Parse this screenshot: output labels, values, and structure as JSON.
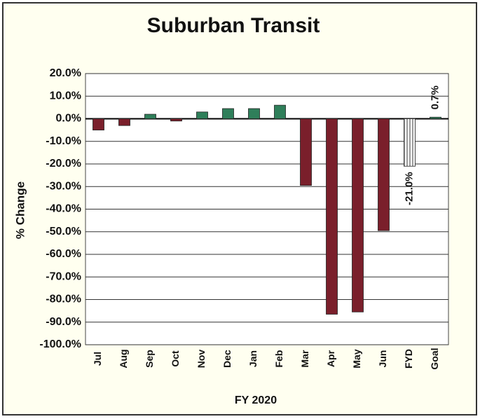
{
  "chart_data": {
    "type": "bar",
    "title": "Suburban Transit",
    "xlabel": "FY 2020",
    "ylabel": "% Change",
    "categories": [
      "Jul",
      "Aug",
      "Sep",
      "Oct",
      "Nov",
      "Dec",
      "Jan",
      "Feb",
      "Mar",
      "Apr",
      "May",
      "Jun",
      "FYD",
      "Goal"
    ],
    "values": [
      -5,
      -3,
      2,
      -1,
      3,
      4.5,
      4.5,
      6,
      -29.5,
      -86.5,
      -85.5,
      -49.5,
      -21.0,
      0.7
    ],
    "value_labels": [
      null,
      null,
      null,
      null,
      null,
      null,
      null,
      null,
      null,
      null,
      null,
      null,
      "-21.0%",
      "0.7%"
    ],
    "colors": [
      "#7a1f2b",
      "#7a1f2b",
      "#2f7f5a",
      "#7a1f2b",
      "#2f7f5a",
      "#2f7f5a",
      "#2f7f5a",
      "#2f7f5a",
      "#7a1f2b",
      "#7a1f2b",
      "#7a1f2b",
      "#7a1f2b",
      "#9a9a9a",
      "#2f7f5a"
    ],
    "hatched": [
      false,
      false,
      false,
      false,
      false,
      false,
      false,
      false,
      false,
      false,
      false,
      false,
      true,
      false
    ],
    "ylim": [
      -100,
      20
    ],
    "yticks": [
      {
        "value": 20,
        "label": "20.0%"
      },
      {
        "value": 10,
        "label": "10.0%"
      },
      {
        "value": 0,
        "label": "0.0%"
      },
      {
        "value": -10,
        "label": "-10.0%"
      },
      {
        "value": -20,
        "label": "-20.0%"
      },
      {
        "value": -30,
        "label": "-30.0%"
      },
      {
        "value": -40,
        "label": "-40.0%"
      },
      {
        "value": -50,
        "label": "-50.0%"
      },
      {
        "value": -60,
        "label": "-60.0%"
      },
      {
        "value": -70,
        "label": "-70.0%"
      },
      {
        "value": -80,
        "label": "-80.0%"
      },
      {
        "value": -90,
        "label": "-90.0%"
      },
      {
        "value": -100,
        "label": "-100.0%"
      }
    ],
    "grid": true
  }
}
